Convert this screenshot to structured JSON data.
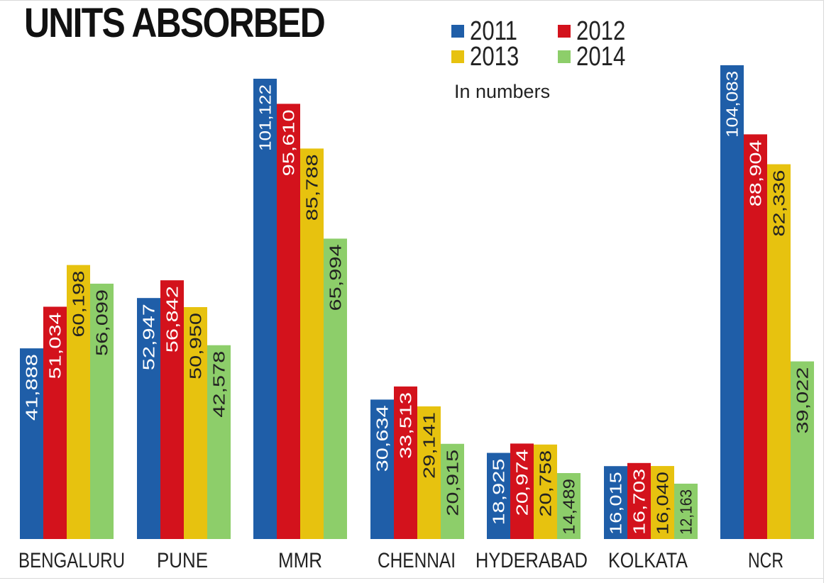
{
  "chart_data": {
    "type": "bar",
    "title": "UNITS ABSORBED",
    "subtitle": "In numbers",
    "xlabel": "",
    "ylabel": "",
    "ylim": [
      0,
      110000
    ],
    "grid": false,
    "legend_position": "top-right",
    "categories": [
      "BENGALURU",
      "PUNE",
      "MMR",
      "CHENNAI",
      "HYDERABAD",
      "KOLKATA",
      "NCR"
    ],
    "series": [
      {
        "name": "2011",
        "color": "#1f5ea8",
        "values": [
          41888,
          52947,
          101122,
          30634,
          18925,
          16015,
          104083
        ],
        "labels": [
          "41,888",
          "52,947",
          "101,122",
          "30,634",
          "18,925",
          "16,015",
          "104,083"
        ]
      },
      {
        "name": "2012",
        "color": "#d3121c",
        "values": [
          51034,
          56842,
          95610,
          33513,
          20974,
          16703,
          88904
        ],
        "labels": [
          "51,034",
          "56,842",
          "95,610",
          "33,513",
          "20,974",
          "16,703",
          "88,904"
        ]
      },
      {
        "name": "2013",
        "color": "#e7c20f",
        "values": [
          60198,
          50950,
          85788,
          29141,
          20758,
          16040,
          82336
        ],
        "labels": [
          "60,198",
          "50,950",
          "85,788",
          "29,141",
          "20,758",
          "16,040",
          "82,336"
        ]
      },
      {
        "name": "2014",
        "color": "#8dce6a",
        "values": [
          56099,
          42578,
          65994,
          20915,
          14489,
          12163,
          39022
        ],
        "labels": [
          "56,099",
          "42,578",
          "65,994",
          "20,915",
          "14,489",
          "12,163",
          "39,022"
        ]
      }
    ],
    "label_colors": [
      "#ffffff",
      "#ffffff",
      "#222222",
      "#222222"
    ]
  }
}
